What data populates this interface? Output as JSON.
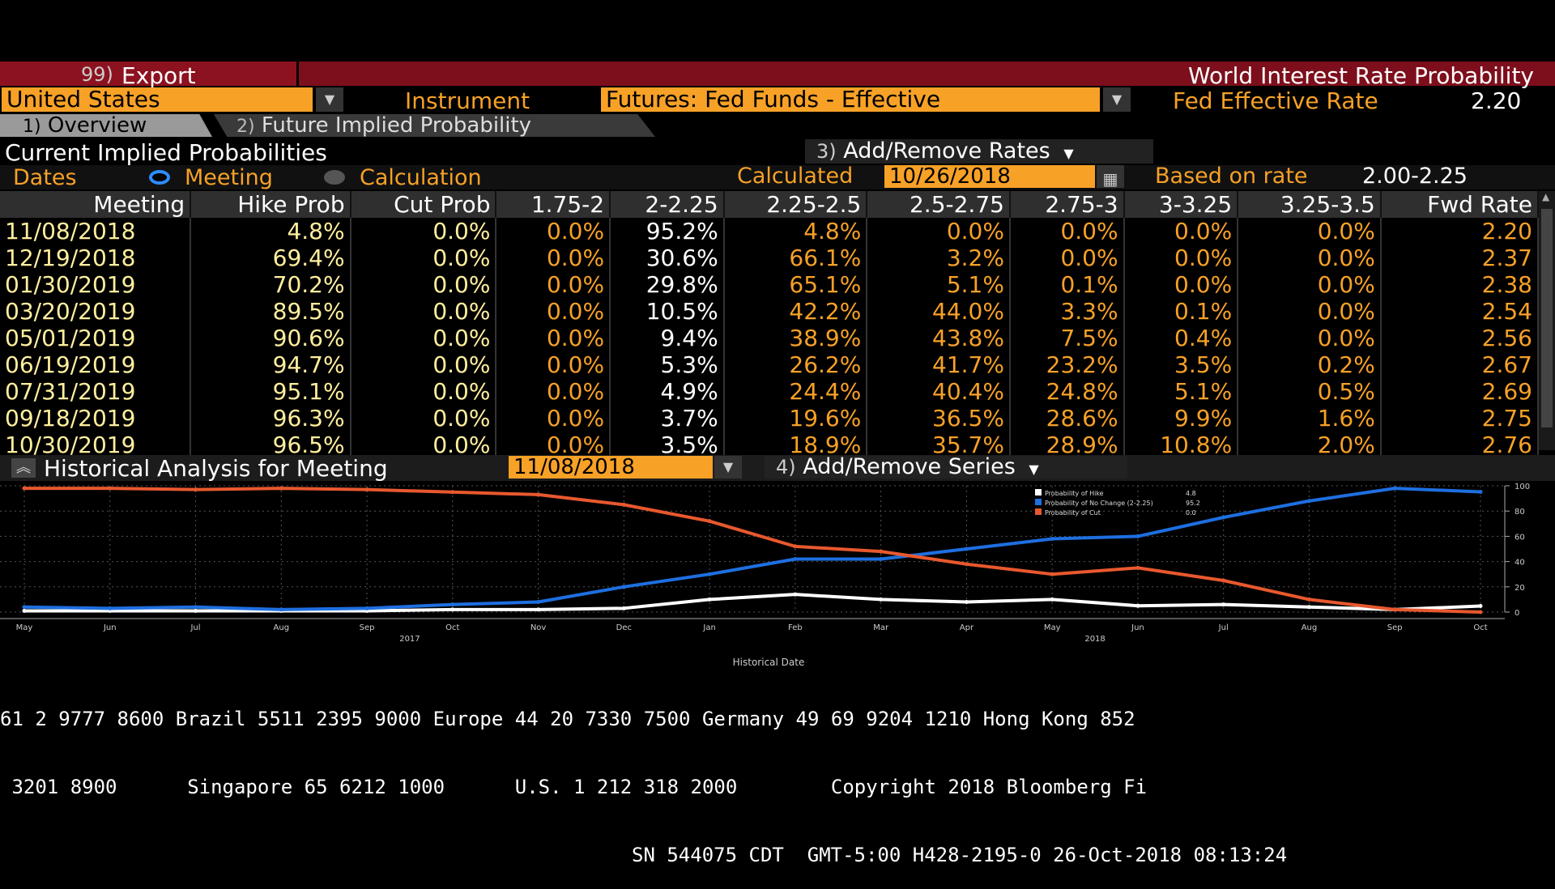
{
  "topbar": {
    "export_num": "99)",
    "export_label": "Export",
    "title": "World Interest Rate Probability"
  },
  "selectors": {
    "country": "United States",
    "instrument_label": "Instrument",
    "instrument": "Futures: Fed Funds - Effective",
    "rate_label": "Fed Effective Rate",
    "rate_value": "2.20"
  },
  "tabs": [
    {
      "num": "1)",
      "label": "Overview"
    },
    {
      "num": "2)",
      "label": "Future Implied Probability"
    }
  ],
  "section": {
    "title": "Current Implied Probabilities",
    "add_remove_num": "3)",
    "add_remove_label": "Add/Remove Rates"
  },
  "dates": {
    "label": "Dates",
    "opt_meeting": "Meeting",
    "opt_calculation": "Calculation",
    "calculated_label": "Calculated",
    "calculated_value": "10/26/2018",
    "based_label": "Based on rate",
    "based_value": "2.00-2.25"
  },
  "table": {
    "headers": [
      "Meeting",
      "Hike Prob",
      "Cut Prob",
      "1.75-2",
      "2-2.25",
      "2.25-2.5",
      "2.5-2.75",
      "2.75-3",
      "3-3.25",
      "3.25-3.5",
      "Fwd Rate"
    ],
    "rows": [
      [
        "11/08/2018",
        "4.8%",
        "0.0%",
        "0.0%",
        "95.2%",
        "4.8%",
        "0.0%",
        "0.0%",
        "0.0%",
        "0.0%",
        "2.20"
      ],
      [
        "12/19/2018",
        "69.4%",
        "0.0%",
        "0.0%",
        "30.6%",
        "66.1%",
        "3.2%",
        "0.0%",
        "0.0%",
        "0.0%",
        "2.37"
      ],
      [
        "01/30/2019",
        "70.2%",
        "0.0%",
        "0.0%",
        "29.8%",
        "65.1%",
        "5.1%",
        "0.1%",
        "0.0%",
        "0.0%",
        "2.38"
      ],
      [
        "03/20/2019",
        "89.5%",
        "0.0%",
        "0.0%",
        "10.5%",
        "42.2%",
        "44.0%",
        "3.3%",
        "0.1%",
        "0.0%",
        "2.54"
      ],
      [
        "05/01/2019",
        "90.6%",
        "0.0%",
        "0.0%",
        "9.4%",
        "38.9%",
        "43.8%",
        "7.5%",
        "0.4%",
        "0.0%",
        "2.56"
      ],
      [
        "06/19/2019",
        "94.7%",
        "0.0%",
        "0.0%",
        "5.3%",
        "26.2%",
        "41.7%",
        "23.2%",
        "3.5%",
        "0.2%",
        "2.67"
      ],
      [
        "07/31/2019",
        "95.1%",
        "0.0%",
        "0.0%",
        "4.9%",
        "24.4%",
        "40.4%",
        "24.8%",
        "5.1%",
        "0.5%",
        "2.69"
      ],
      [
        "09/18/2019",
        "96.3%",
        "0.0%",
        "0.0%",
        "3.7%",
        "19.6%",
        "36.5%",
        "28.6%",
        "9.9%",
        "1.6%",
        "2.75"
      ],
      [
        "10/30/2019",
        "96.5%",
        "0.0%",
        "0.0%",
        "3.5%",
        "18.9%",
        "35.7%",
        "28.9%",
        "10.8%",
        "2.0%",
        "2.76"
      ]
    ]
  },
  "historical": {
    "title": "Historical Analysis for Meeting",
    "meeting": "11/08/2018",
    "add_series_num": "4)",
    "add_series_label": "Add/Remove Series"
  },
  "chart_data": {
    "type": "line",
    "xlabel": "Historical Date",
    "month_labels": [
      "May",
      "Jun",
      "Jul",
      "Aug",
      "Sep",
      "Oct",
      "Nov",
      "Dec",
      "Jan",
      "Feb",
      "Mar",
      "Apr",
      "May",
      "Jun",
      "Jul",
      "Aug",
      "Sep",
      "Oct"
    ],
    "year_labels": [
      "2017",
      "2018"
    ],
    "y_ticks": [
      "100",
      "80",
      "60",
      "40",
      "20",
      "0"
    ],
    "ylim": [
      0,
      100
    ],
    "grid": true,
    "legend_position": "top-right",
    "x": [
      "May-17",
      "Jun-17",
      "Jul-17",
      "Aug-17",
      "Sep-17",
      "Oct-17",
      "Nov-17",
      "Dec-17",
      "Jan-18",
      "Feb-18",
      "Mar-18",
      "Apr-18",
      "May-18",
      "Jun-18",
      "Jul-18",
      "Aug-18",
      "Sep-18",
      "Oct-18"
    ],
    "series": [
      {
        "name": "Probability of Hike",
        "value_label": "4.8",
        "color": "#ffffff",
        "values": [
          1,
          1,
          1,
          1,
          1,
          2,
          2,
          3,
          10,
          14,
          10,
          8,
          10,
          5,
          6,
          4,
          2,
          4.8
        ]
      },
      {
        "name": "Probability of No Change (2-2.25)",
        "value_label": "95.2",
        "color": "#1e6fe0",
        "values": [
          4,
          3,
          4,
          2,
          3,
          6,
          8,
          20,
          30,
          42,
          42,
          50,
          58,
          60,
          75,
          88,
          98,
          95.2
        ]
      },
      {
        "name": "Probability of Cut",
        "value_label": "0.0",
        "color": "#e8582e",
        "values": [
          98,
          98,
          97,
          98,
          97,
          95,
          93,
          85,
          72,
          52,
          48,
          38,
          30,
          35,
          25,
          10,
          2,
          0
        ]
      }
    ]
  },
  "footer": {
    "line1": "61 2 9777 8600 Brazil 5511 2395 9000 Europe 44 20 7330 7500 Germany 49 69 9204 1210 Hong Kong 852",
    "line2": " 3201 8900      Singapore 65 6212 1000      U.S. 1 212 318 2000        Copyright 2018 Bloomberg Fi",
    "line3": "SN 544075 CDT  GMT-5:00 H428-2195-0 26-Oct-2018 08:13:24"
  },
  "colors": {
    "accent": "#f7a127",
    "header_red": "#7d0f1c",
    "hike": "#ffffff",
    "nochange": "#1e6fe0",
    "cut": "#e8582e"
  }
}
